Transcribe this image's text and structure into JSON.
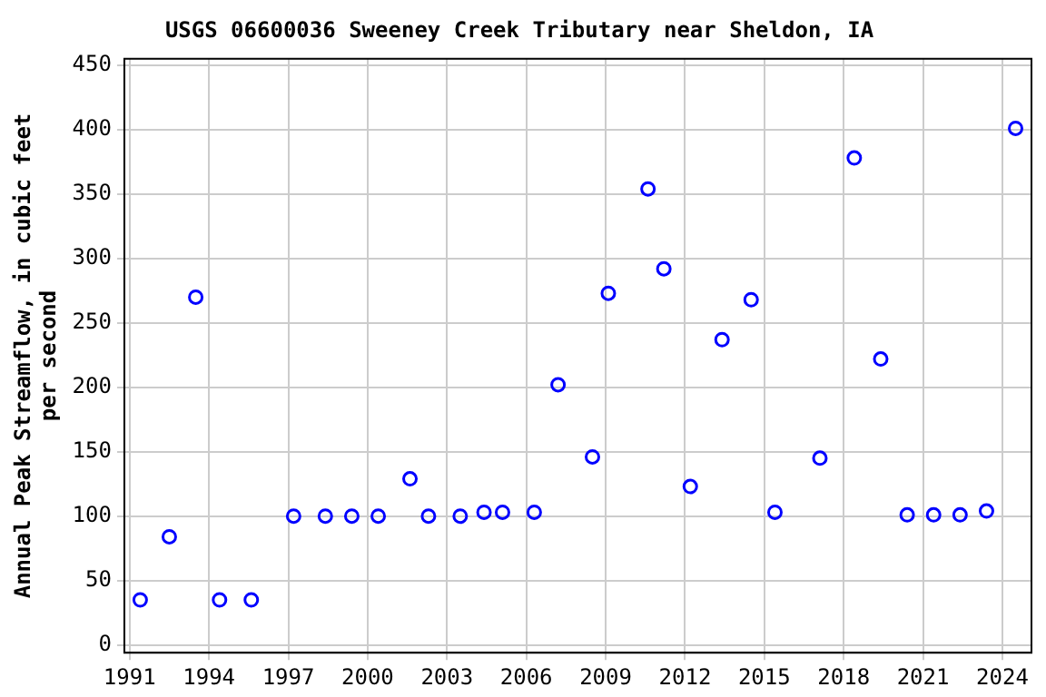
{
  "chart_data": {
    "type": "scatter",
    "title": "USGS 06600036 Sweeney Creek Tributary near Sheldon, IA",
    "ylabel": "Annual Peak Streamflow, in cubic feet per second",
    "x": [
      1991.4,
      1992.5,
      1993.5,
      1994.4,
      1995.6,
      1997.2,
      1998.4,
      1999.4,
      2000.4,
      2001.6,
      2002.3,
      2003.5,
      2004.4,
      2005.1,
      2006.3,
      2007.2,
      2008.5,
      2009.1,
      2010.6,
      2011.2,
      2012.2,
      2013.4,
      2014.5,
      2015.4,
      2017.1,
      2018.4,
      2019.4,
      2020.4,
      2021.4,
      2022.4,
      2023.4,
      2024.5
    ],
    "series": [
      {
        "color": "#0000ff",
        "values": [
          35,
          84,
          270,
          35,
          35,
          100,
          100,
          100,
          100,
          129,
          100,
          100,
          103,
          103,
          103,
          202,
          146,
          273,
          354,
          292,
          123,
          237,
          268,
          103,
          145,
          378,
          222,
          101,
          101,
          101,
          104,
          401
        ]
      }
    ],
    "xlim": [
      1990.8,
      2025.1
    ],
    "xticks": [
      1991,
      1994,
      1997,
      2000,
      2003,
      2006,
      2009,
      2012,
      2015,
      2018,
      2021,
      2024
    ],
    "ylim": [
      -6,
      455
    ],
    "yticks": [
      0,
      50,
      100,
      150,
      200,
      250,
      300,
      350,
      400,
      450
    ],
    "grid": true,
    "legend": false,
    "marker": "circle"
  }
}
